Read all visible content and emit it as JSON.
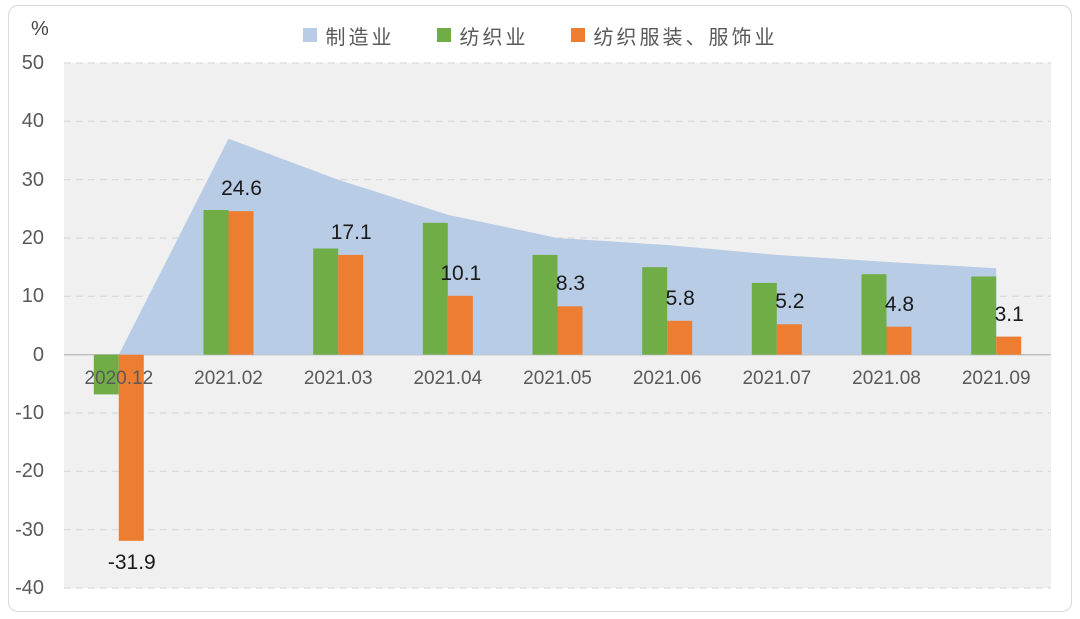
{
  "chart_data": {
    "type": "combo-area-bar",
    "title": "",
    "ylabel": "%",
    "ylim": [
      -40,
      50
    ],
    "yticks": [
      50,
      40,
      30,
      20,
      10,
      0,
      -10,
      -20,
      -30,
      -40
    ],
    "grid": "horizontal-dashed",
    "legend_position": "top-center",
    "categories": [
      "2020.12",
      "2021.02",
      "2021.03",
      "2021.04",
      "2021.05",
      "2021.06",
      "2021.07",
      "2021.08",
      "2021.09"
    ],
    "series": [
      {
        "name": "制造业",
        "type": "area",
        "color": "#B9CCE6",
        "values": [
          0,
          37,
          30,
          24,
          20,
          18.8,
          17.1,
          15.9,
          14.8
        ]
      },
      {
        "name": "纺织业",
        "type": "bar",
        "color": "#70AD47",
        "values": [
          -6.8,
          24.8,
          18.2,
          22.6,
          17.1,
          15.0,
          12.3,
          13.8,
          13.4
        ]
      },
      {
        "name": "纺织服装、服饰业",
        "type": "bar",
        "color": "#ED7D31",
        "values": [
          -31.9,
          24.6,
          17.1,
          10.1,
          8.3,
          5.8,
          5.2,
          4.8,
          3.1
        ],
        "data_labels": [
          "-31.9",
          "24.6",
          "17.1",
          "10.1",
          "8.3",
          "5.8",
          "5.2",
          "4.8",
          "3.1"
        ]
      }
    ]
  },
  "style": {
    "plot_background": "#F0F0F1",
    "gridline_color": "#D9D9D9",
    "zero_line_color": "#BEBEBE",
    "axis_text_color": "#595959",
    "data_label_color": "#1A1A1A",
    "card_border_color": "#D9D9D9"
  }
}
